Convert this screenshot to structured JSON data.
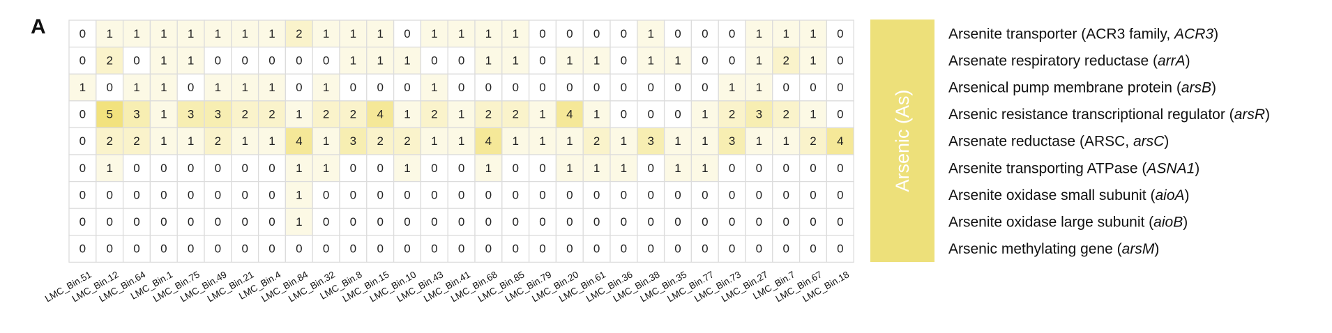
{
  "panel_label": "A",
  "group_label": "Arsenic (As)",
  "colors": {
    "low": "#ffffff",
    "high": "#f2e27e",
    "group_bar": "#ede07a",
    "grid": "#dcdcdc"
  },
  "chart_data": {
    "type": "heatmap",
    "columns": [
      "LMC_Bin.51",
      "LMC_Bin.12",
      "LMC_Bin.64",
      "LMC_Bin.1",
      "LMC_Bin.75",
      "LMC_Bin.49",
      "LMC_Bin.21",
      "LMC_Bin.4",
      "LMC_Bin.84",
      "LMC_Bin.32",
      "LMC_Bin.8",
      "LMC_Bin.15",
      "LMC_Bin.10",
      "LMC_Bin.43",
      "LMC_Bin.41",
      "LMC_Bin.68",
      "LMC_Bin.85",
      "LMC_Bin.79",
      "LMC_Bin.20",
      "LMC_Bin.61",
      "LMC_Bin.36",
      "LMC_Bin.38",
      "LMC_Bin.35",
      "LMC_Bin.77",
      "LMC_Bin.73",
      "LMC_Bin.27",
      "LMC_Bin.7",
      "LMC_Bin.67",
      "LMC_Bin.18"
    ],
    "rows": [
      {
        "label_parts": [
          {
            "text": "Arsenite transporter (ACR3 family, "
          },
          {
            "text": "ACR3",
            "italic": true
          },
          {
            "text": ")"
          }
        ]
      },
      {
        "label_parts": [
          {
            "text": "Arsenate respiratory reductase ("
          },
          {
            "text": "arrA",
            "italic": true
          },
          {
            "text": ")"
          }
        ]
      },
      {
        "label_parts": [
          {
            "text": "Arsenical pump membrane protein ("
          },
          {
            "text": "arsB",
            "italic": true
          },
          {
            "text": ")"
          }
        ]
      },
      {
        "label_parts": [
          {
            "text": "Arsenic resistance transcriptional regulator ("
          },
          {
            "text": "arsR",
            "italic": true
          },
          {
            "text": ")"
          }
        ]
      },
      {
        "label_parts": [
          {
            "text": "Arsenate reductase (ARSC, "
          },
          {
            "text": "arsC",
            "italic": true
          },
          {
            "text": ")"
          }
        ]
      },
      {
        "label_parts": [
          {
            "text": "Arsenite transporting ATPase ("
          },
          {
            "text": "ASNA1",
            "italic": true
          },
          {
            "text": ")"
          }
        ]
      },
      {
        "label_parts": [
          {
            "text": "Arsenite oxidase small subunit ("
          },
          {
            "text": "aioA",
            "italic": true
          },
          {
            "text": ")"
          }
        ]
      },
      {
        "label_parts": [
          {
            "text": "Arsenite oxidase large subunit ("
          },
          {
            "text": "aioB",
            "italic": true
          },
          {
            "text": ")"
          }
        ]
      },
      {
        "label_parts": [
          {
            "text": "Arsenic methylating gene ("
          },
          {
            "text": "arsM",
            "italic": true
          },
          {
            "text": ")"
          }
        ]
      }
    ],
    "values": [
      [
        0,
        1,
        1,
        1,
        1,
        1,
        1,
        1,
        2,
        1,
        1,
        1,
        0,
        1,
        1,
        1,
        1,
        0,
        0,
        0,
        0,
        1,
        0,
        0,
        0,
        1,
        1,
        1,
        0
      ],
      [
        0,
        2,
        0,
        1,
        1,
        0,
        0,
        0,
        0,
        0,
        1,
        1,
        1,
        0,
        0,
        1,
        1,
        0,
        1,
        1,
        0,
        1,
        1,
        0,
        0,
        1,
        2,
        1,
        0
      ],
      [
        1,
        0,
        1,
        1,
        0,
        1,
        1,
        1,
        0,
        1,
        0,
        0,
        0,
        1,
        0,
        0,
        0,
        0,
        0,
        0,
        0,
        0,
        0,
        0,
        1,
        1,
        0,
        0,
        0
      ],
      [
        0,
        5,
        3,
        1,
        3,
        3,
        2,
        2,
        1,
        2,
        2,
        4,
        1,
        2,
        1,
        2,
        2,
        1,
        4,
        1,
        0,
        0,
        0,
        1,
        2,
        3,
        2,
        1,
        0
      ],
      [
        0,
        2,
        2,
        1,
        1,
        2,
        1,
        1,
        4,
        1,
        3,
        2,
        2,
        1,
        1,
        4,
        1,
        1,
        1,
        2,
        1,
        3,
        1,
        1,
        3,
        1,
        1,
        2,
        4
      ],
      [
        0,
        1,
        0,
        0,
        0,
        0,
        0,
        0,
        1,
        1,
        0,
        0,
        1,
        0,
        0,
        1,
        0,
        0,
        1,
        1,
        1,
        0,
        1,
        1,
        0,
        0,
        0,
        0,
        0
      ],
      [
        0,
        0,
        0,
        0,
        0,
        0,
        0,
        0,
        1,
        0,
        0,
        0,
        0,
        0,
        0,
        0,
        0,
        0,
        0,
        0,
        0,
        0,
        0,
        0,
        0,
        0,
        0,
        0,
        0
      ],
      [
        0,
        0,
        0,
        0,
        0,
        0,
        0,
        0,
        1,
        0,
        0,
        0,
        0,
        0,
        0,
        0,
        0,
        0,
        0,
        0,
        0,
        0,
        0,
        0,
        0,
        0,
        0,
        0,
        0
      ],
      [
        0,
        0,
        0,
        0,
        0,
        0,
        0,
        0,
        0,
        0,
        0,
        0,
        0,
        0,
        0,
        0,
        0,
        0,
        0,
        0,
        0,
        0,
        0,
        0,
        0,
        0,
        0,
        0,
        0
      ]
    ],
    "value_range": [
      0,
      5
    ]
  }
}
